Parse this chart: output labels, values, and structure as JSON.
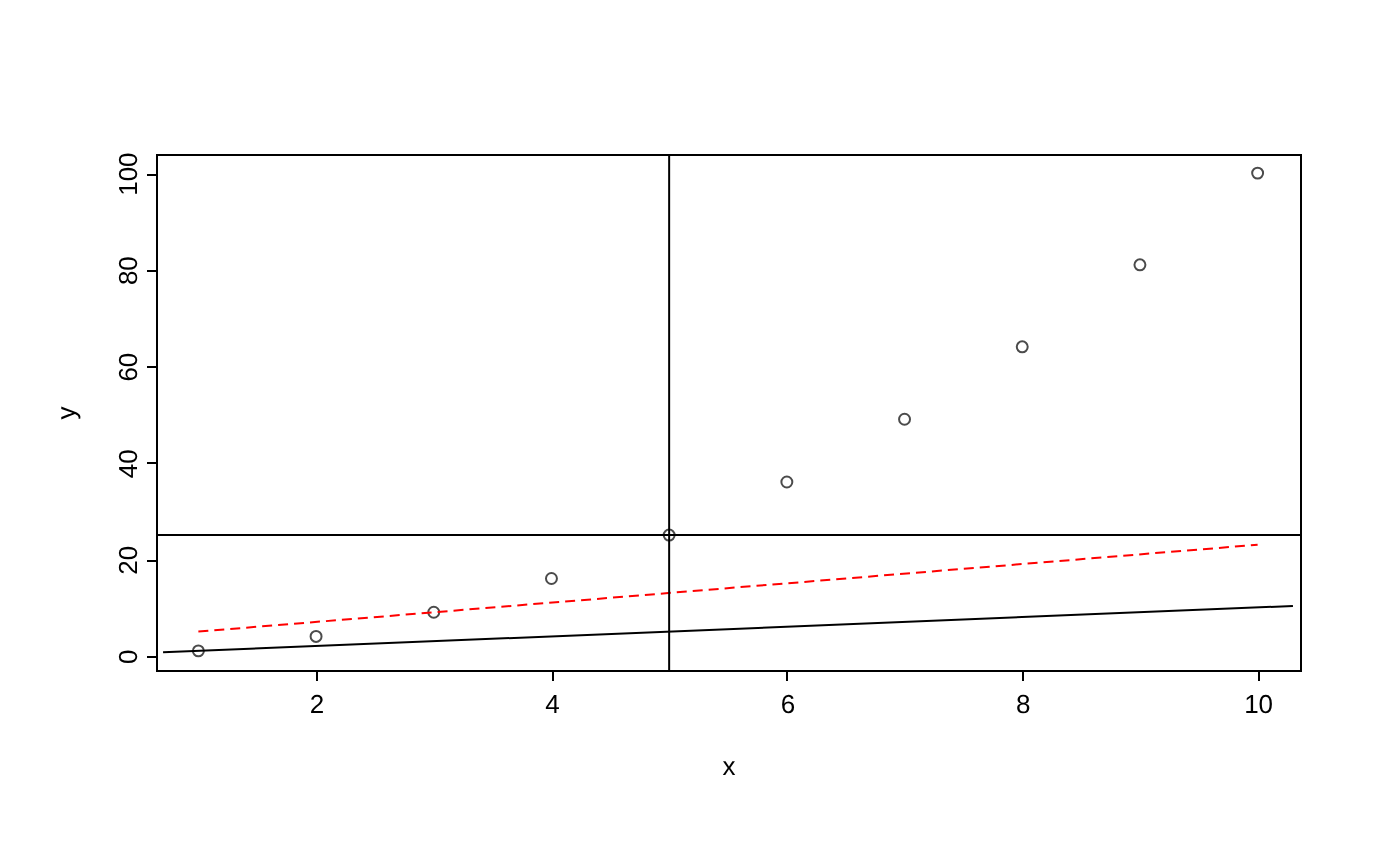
{
  "chart_data": {
    "type": "scatter",
    "xlabel": "x",
    "ylabel": "y",
    "xlim": [
      0.64,
      10.36
    ],
    "ylim": [
      -2.96,
      103.96
    ],
    "xticks": [
      2,
      4,
      6,
      8,
      10
    ],
    "yticks": [
      0,
      20,
      40,
      60,
      80,
      100
    ],
    "grid": false,
    "marker": "circle",
    "series": [
      {
        "color": "#000000",
        "x": [
          1,
          2,
          3,
          4,
          5,
          6,
          7,
          8,
          9,
          10
        ],
        "values": [
          1,
          4,
          9,
          16,
          25,
          36,
          49,
          64,
          81,
          100
        ]
      },
      {
        "type": "line",
        "marker": "none",
        "color": "#000000",
        "line_style": "solid",
        "x": [
          0.7,
          10.3
        ],
        "values": [
          0.7,
          10.3
        ]
      },
      {
        "type": "line",
        "marker": "none",
        "color": "#ff0000",
        "line_style": "dashed",
        "x": [
          1,
          10
        ],
        "values": [
          5,
          23
        ]
      }
    ],
    "ref_lines": [
      {
        "axis": "y",
        "value": 25,
        "color": "#000000"
      },
      {
        "axis": "x",
        "value": 5,
        "color": "#000000"
      }
    ]
  }
}
